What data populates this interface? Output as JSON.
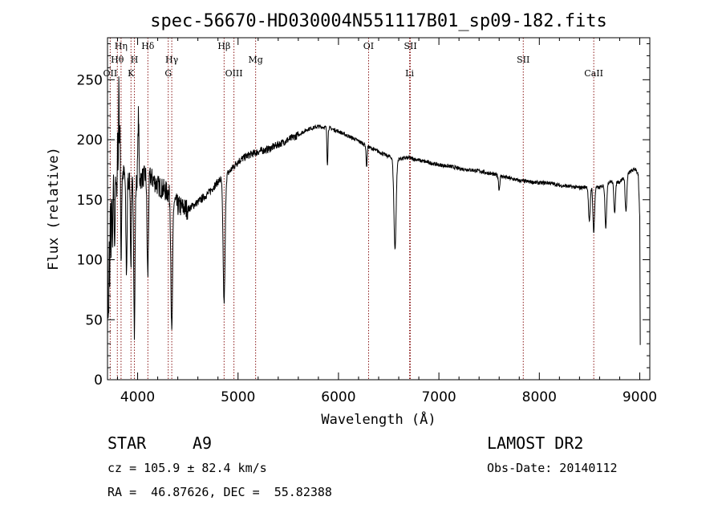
{
  "chart_data": {
    "type": "line",
    "title": "spec-56670-HD030004N551117B01_sp09-182.fits",
    "xlabel": "Wavelength (Å)",
    "ylabel": "Flux (relative)",
    "xlim": [
      3700,
      9100
    ],
    "ylim": [
      0,
      285
    ],
    "xticks": [
      4000,
      5000,
      6000,
      7000,
      8000,
      9000
    ],
    "yticks": [
      0,
      50,
      100,
      150,
      200,
      250
    ],
    "grid": false,
    "line_color": "#000000",
    "marker_color": "#8b1a1a",
    "continuum": [
      [
        3700,
        150
      ],
      [
        3760,
        165
      ],
      [
        3820,
        175
      ],
      [
        3900,
        168
      ],
      [
        3960,
        162
      ],
      [
        4000,
        165
      ],
      [
        4100,
        172
      ],
      [
        4200,
        162
      ],
      [
        4300,
        156
      ],
      [
        4400,
        145
      ],
      [
        4500,
        142
      ],
      [
        4600,
        148
      ],
      [
        4700,
        155
      ],
      [
        4800,
        165
      ],
      [
        4900,
        172
      ],
      [
        5000,
        182
      ],
      [
        5100,
        187
      ],
      [
        5200,
        190
      ],
      [
        5300,
        192
      ],
      [
        5400,
        196
      ],
      [
        5500,
        200
      ],
      [
        5600,
        204
      ],
      [
        5700,
        209
      ],
      [
        5800,
        211
      ],
      [
        5900,
        210
      ],
      [
        6000,
        207
      ],
      [
        6100,
        203
      ],
      [
        6200,
        199
      ],
      [
        6300,
        194
      ],
      [
        6400,
        190
      ],
      [
        6500,
        186
      ],
      [
        6600,
        184
      ],
      [
        6700,
        185
      ],
      [
        6800,
        183
      ],
      [
        6900,
        181
      ],
      [
        7000,
        179
      ],
      [
        7100,
        178
      ],
      [
        7200,
        176
      ],
      [
        7300,
        175
      ],
      [
        7400,
        174
      ],
      [
        7500,
        172
      ],
      [
        7600,
        170
      ],
      [
        7700,
        168
      ],
      [
        7800,
        166
      ],
      [
        7900,
        165
      ],
      [
        8000,
        164
      ],
      [
        8100,
        164
      ],
      [
        8200,
        162
      ],
      [
        8300,
        161
      ],
      [
        8400,
        160
      ],
      [
        8500,
        161
      ],
      [
        8600,
        160
      ],
      [
        8700,
        165
      ],
      [
        8800,
        165
      ],
      [
        8900,
        173
      ],
      [
        8960,
        176
      ],
      [
        8985,
        170
      ],
      [
        9000,
        135
      ],
      [
        9005,
        30
      ]
    ],
    "absorption": [
      {
        "w": 3705,
        "depth": 90,
        "width": 3
      },
      {
        "w": 3712,
        "depth": 95,
        "width": 3
      },
      {
        "w": 3722,
        "depth": 80,
        "width": 3
      },
      {
        "w": 3735,
        "depth": 55,
        "width": 3
      },
      {
        "w": 3750,
        "depth": 60,
        "width": 3
      },
      {
        "w": 3771,
        "depth": 65,
        "width": 4
      },
      {
        "w": 3798,
        "depth": 45,
        "width": 4
      },
      {
        "w": 3835,
        "depth": 75,
        "width": 5
      },
      {
        "w": 3889,
        "depth": 80,
        "width": 6
      },
      {
        "w": 3933,
        "depth": 70,
        "width": 5
      },
      {
        "w": 3968,
        "depth": 125,
        "width": 6
      },
      {
        "w": 4101,
        "depth": 85,
        "width": 7
      },
      {
        "w": 4340,
        "depth": 115,
        "width": 8
      },
      {
        "w": 4861,
        "depth": 105,
        "width": 10
      },
      {
        "w": 5890,
        "depth": 30,
        "width": 5
      },
      {
        "w": 6280,
        "depth": 18,
        "width": 5
      },
      {
        "w": 6563,
        "depth": 75,
        "width": 11
      },
      {
        "w": 7600,
        "depth": 12,
        "width": 6
      },
      {
        "w": 8498,
        "depth": 30,
        "width": 8
      },
      {
        "w": 8542,
        "depth": 38,
        "width": 8
      },
      {
        "w": 8662,
        "depth": 36,
        "width": 8
      },
      {
        "w": 8750,
        "depth": 25,
        "width": 8
      },
      {
        "w": 8863,
        "depth": 30,
        "width": 8
      }
    ],
    "emission": [
      {
        "w": 3800,
        "height": 70,
        "width": 3
      },
      {
        "w": 3813,
        "height": 80,
        "width": 3
      },
      {
        "w": 3825,
        "height": 50,
        "width": 3
      },
      {
        "w": 4005,
        "height": 30,
        "width": 5
      },
      {
        "w": 4010,
        "height": 35,
        "width": 4
      }
    ],
    "line_markers": [
      {
        "label": "OII",
        "wavelength": 3727,
        "row": 3
      },
      {
        "label": "Hθ",
        "wavelength": 3798,
        "row": 2
      },
      {
        "label": "Hη",
        "wavelength": 3835,
        "row": 1
      },
      {
        "label": "H",
        "wavelength": 3968,
        "row": 2
      },
      {
        "label": "K",
        "wavelength": 3934,
        "row": 3
      },
      {
        "label": "Hδ",
        "wavelength": 4102,
        "row": 1
      },
      {
        "label": "Hγ",
        "wavelength": 4340,
        "row": 2
      },
      {
        "label": "G",
        "wavelength": 4305,
        "row": 3
      },
      {
        "label": "Hβ",
        "wavelength": 4861,
        "row": 1
      },
      {
        "label": "OIII",
        "wavelength": 4959,
        "row": 3
      },
      {
        "label": "Mg",
        "wavelength": 5175,
        "row": 2
      },
      {
        "label": "OI",
        "wavelength": 6300,
        "row": 1
      },
      {
        "label": "SII",
        "wavelength": 6716,
        "row": 1
      },
      {
        "label": "Li",
        "wavelength": 6708,
        "row": 3
      },
      {
        "label": "SII",
        "wavelength": 7840,
        "row": 2
      },
      {
        "label": "CaII",
        "wavelength": 8542,
        "row": 3
      }
    ]
  },
  "info": {
    "class_label": "STAR",
    "subclass": "A9",
    "survey": "LAMOST DR2",
    "redshift": "cz = 105.9 ± 82.4 km/s",
    "obs_date": "Obs-Date: 20140112",
    "coords": "RA =  46.87626, DEC =  55.82388"
  }
}
